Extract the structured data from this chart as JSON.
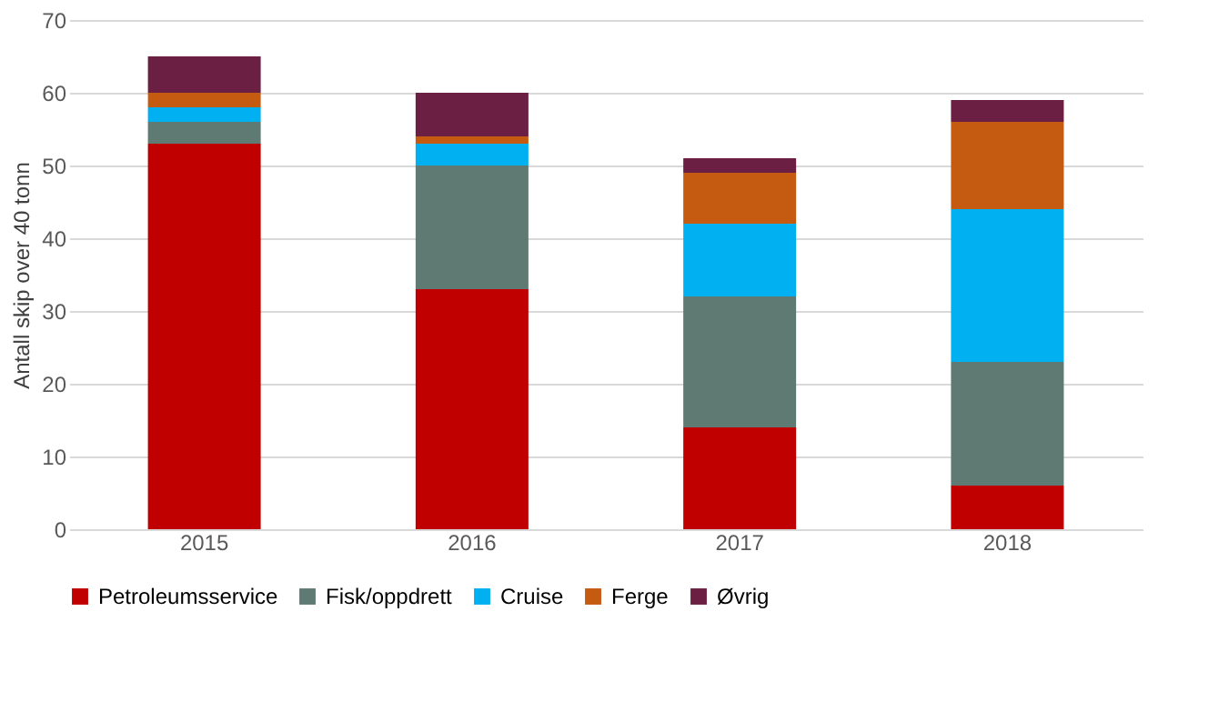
{
  "chart_data": {
    "type": "bar",
    "stacked": true,
    "ylabel": "Antall skip over 40 tonn",
    "categories": [
      "2015",
      "2016",
      "2017",
      "2018"
    ],
    "series": [
      {
        "name": "Petroleumsservice",
        "color": "#c00000",
        "values": [
          53,
          33,
          14,
          6
        ]
      },
      {
        "name": "Fisk/oppdrett",
        "color": "#5f7a72",
        "values": [
          3,
          17,
          18,
          17
        ]
      },
      {
        "name": "Cruise",
        "color": "#00b0f0",
        "values": [
          2,
          3,
          10,
          21
        ]
      },
      {
        "name": "Ferge",
        "color": "#c55a11",
        "values": [
          2,
          1,
          7,
          12
        ]
      },
      {
        "name": "Øvrig",
        "color": "#6b1f43",
        "values": [
          5,
          6,
          2,
          3
        ]
      }
    ],
    "ylim": [
      0,
      70
    ],
    "yticks": [
      0,
      10,
      20,
      30,
      40,
      50,
      60,
      70
    ],
    "grid": "y",
    "legend": "bottom"
  }
}
